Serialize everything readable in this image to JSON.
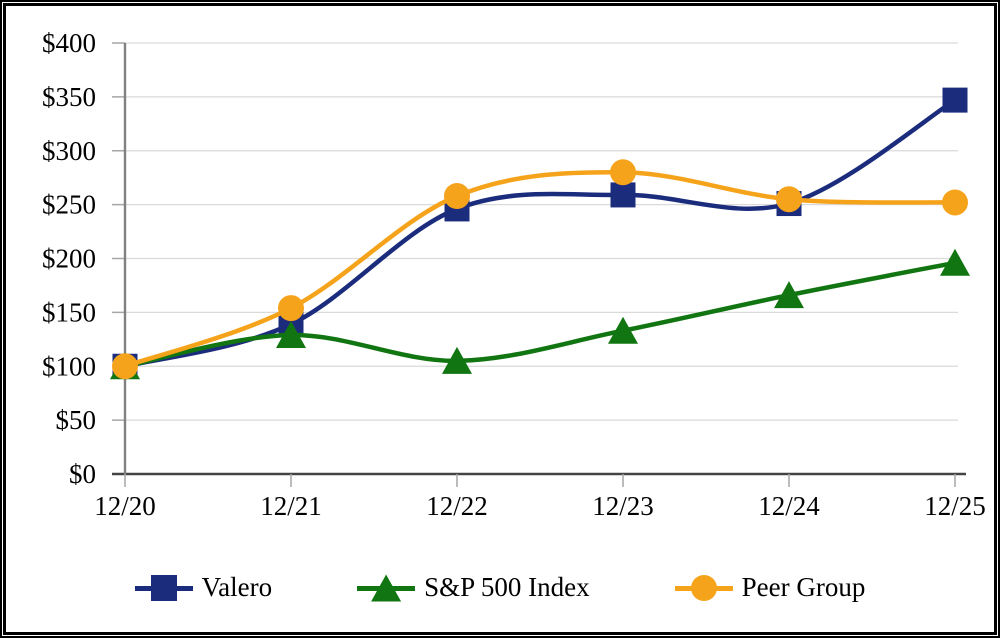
{
  "chart_data": {
    "type": "line",
    "title": "",
    "x": [
      "12/20",
      "12/21",
      "12/22",
      "12/23",
      "12/24",
      "12/25"
    ],
    "series": [
      {
        "name": "Valero",
        "values": [
          100,
          139,
          246,
          259,
          251,
          347
        ],
        "color": "#1B2C7D",
        "marker": "square"
      },
      {
        "name": "S&P 500 Index",
        "values": [
          100,
          129,
          105,
          133,
          166,
          196
        ],
        "color": "#117611",
        "marker": "triangle"
      },
      {
        "name": "Peer Group",
        "values": [
          100,
          154,
          258,
          280,
          255,
          252
        ],
        "color": "#F6A31C",
        "marker": "circle"
      }
    ],
    "ylim": [
      0,
      400
    ],
    "y_tick_step": 50,
    "y_tick_labels": [
      "$0",
      "$50",
      "$100",
      "$150",
      "$200",
      "$250",
      "$300",
      "$350",
      "$400"
    ],
    "y_prefix": "$",
    "grid": "horizontal",
    "smooth": true,
    "legend_position": "bottom",
    "colors": {
      "grid": "#DADADA",
      "axis_x": "#444444",
      "axis_y": "#808080",
      "tick": "#A6A6A6",
      "text": "#000000",
      "frame": "#000000",
      "background": "#FFFFFF"
    }
  }
}
